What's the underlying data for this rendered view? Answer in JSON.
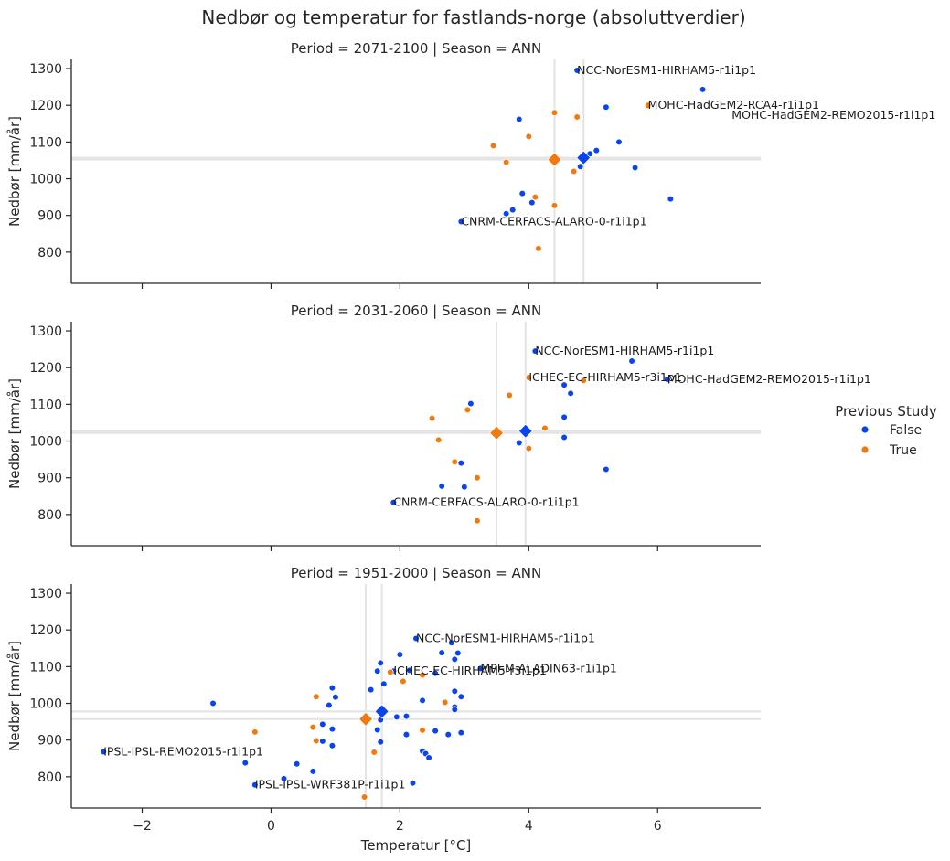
{
  "title": "Nedbør og temperatur for fastlands-norge (absoluttverdier)",
  "legend": {
    "title": "Previous Study",
    "placement": "right",
    "entries": [
      {
        "label": "False",
        "color": "#0a44ee"
      },
      {
        "label": "True",
        "color": "#f07a0d"
      }
    ]
  },
  "chart_data": [
    {
      "type": "scatter",
      "title": "Period = 2071-2100 | Season = ANN",
      "xlabel": "",
      "ylabel": "Nedbør [mm/år]",
      "xlim": [
        -3.1,
        7.6
      ],
      "ylim": [
        715,
        1325
      ],
      "xticks": [
        -2,
        0,
        2,
        4,
        6
      ],
      "yticks": [
        800,
        900,
        1000,
        1100,
        1200,
        1300
      ],
      "show_xticklabels": false,
      "grid": false,
      "series": [
        {
          "name": "False",
          "color": "#0a44ee",
          "points": [
            [
              4.75,
              1295
            ],
            [
              6.7,
              1243
            ],
            [
              5.2,
              1195
            ],
            [
              3.85,
              1162
            ],
            [
              5.4,
              1100
            ],
            [
              5.05,
              1077
            ],
            [
              4.95,
              1068
            ],
            [
              4.8,
              1033
            ],
            [
              5.65,
              1030
            ],
            [
              3.9,
              960
            ],
            [
              4.05,
              935
            ],
            [
              6.2,
              945
            ],
            [
              3.75,
              915
            ],
            [
              3.65,
              905
            ],
            [
              2.95,
              883
            ]
          ]
        },
        {
          "name": "True",
          "color": "#f07a0d",
          "points": [
            [
              5.85,
              1200
            ],
            [
              4.4,
              1180
            ],
            [
              4.75,
              1168
            ],
            [
              4.0,
              1115
            ],
            [
              3.45,
              1090
            ],
            [
              3.65,
              1045
            ],
            [
              4.7,
              1020
            ],
            [
              4.1,
              950
            ],
            [
              4.4,
              927
            ],
            [
              4.15,
              810
            ]
          ]
        }
      ],
      "means": [
        {
          "name": "False",
          "x": 4.85,
          "y": 1057
        },
        {
          "name": "True",
          "x": 4.4,
          "y": 1052
        }
      ],
      "annotations": [
        {
          "text": "NCC-NorESM1-HIRHAM5-r1i1p1",
          "x": 4.75,
          "y": 1295
        },
        {
          "text": "MOHC-HadGEM2-RCA4-r1i1p1",
          "x": 5.85,
          "y": 1200
        },
        {
          "text": "MOHC-HadGEM2-REMO2015-r1i1p1",
          "x": 7.15,
          "y": 1173
        },
        {
          "text": "CNRM-CERFACS-ALARO-0-r1i1p1",
          "x": 2.95,
          "y": 883
        }
      ]
    },
    {
      "type": "scatter",
      "title": "Period = 2031-2060 | Season = ANN",
      "xlabel": "",
      "ylabel": "Nedbør [mm/år]",
      "xlim": [
        -3.1,
        7.6
      ],
      "ylim": [
        715,
        1325
      ],
      "xticks": [
        -2,
        0,
        2,
        4,
        6
      ],
      "yticks": [
        800,
        900,
        1000,
        1100,
        1200,
        1300
      ],
      "show_xticklabels": false,
      "grid": false,
      "series": [
        {
          "name": "False",
          "color": "#0a44ee",
          "points": [
            [
              4.1,
              1245
            ],
            [
              5.6,
              1218
            ],
            [
              6.15,
              1168
            ],
            [
              4.55,
              1153
            ],
            [
              4.65,
              1130
            ],
            [
              3.1,
              1102
            ],
            [
              4.55,
              1065
            ],
            [
              4.55,
              1010
            ],
            [
              3.85,
              995
            ],
            [
              5.2,
              923
            ],
            [
              2.95,
              940
            ],
            [
              2.65,
              877
            ],
            [
              3.0,
              875
            ],
            [
              1.9,
              833
            ]
          ]
        },
        {
          "name": "True",
          "color": "#f07a0d",
          "points": [
            [
              4.0,
              1173
            ],
            [
              4.85,
              1165
            ],
            [
              3.7,
              1125
            ],
            [
              3.05,
              1085
            ],
            [
              2.5,
              1062
            ],
            [
              4.25,
              1035
            ],
            [
              2.6,
              1003
            ],
            [
              2.85,
              943
            ],
            [
              4.0,
              980
            ],
            [
              3.2,
              900
            ],
            [
              3.2,
              783
            ]
          ]
        }
      ],
      "means": [
        {
          "name": "False",
          "x": 3.95,
          "y": 1027
        },
        {
          "name": "True",
          "x": 3.5,
          "y": 1022
        }
      ],
      "annotations": [
        {
          "text": "NCC-NorESM1-HIRHAM5-r1i1p1",
          "x": 4.1,
          "y": 1245
        },
        {
          "text": "ICHEC-EC-HIRHAM5-r3i1p1",
          "x": 4.0,
          "y": 1173
        },
        {
          "text": "MOHC-HadGEM2-REMO2015-r1i1p1",
          "x": 6.15,
          "y": 1168
        },
        {
          "text": "CNRM-CERFACS-ALARO-0-r1i1p1",
          "x": 1.9,
          "y": 833
        }
      ]
    },
    {
      "type": "scatter",
      "title": "Period = 1951-2000 | Season = ANN",
      "xlabel": "Temperatur [°C]",
      "ylabel": "Nedbør [mm/år]",
      "xlim": [
        -3.1,
        7.6
      ],
      "ylim": [
        715,
        1325
      ],
      "xticks": [
        -2,
        0,
        2,
        4,
        6
      ],
      "yticks": [
        800,
        900,
        1000,
        1100,
        1200,
        1300
      ],
      "show_xticklabels": true,
      "grid": false,
      "series": [
        {
          "name": "False",
          "color": "#0a44ee",
          "points": [
            [
              2.25,
              1177
            ],
            [
              2.8,
              1165
            ],
            [
              2.65,
              1138
            ],
            [
              2.9,
              1137
            ],
            [
              2.0,
              1133
            ],
            [
              1.7,
              1110
            ],
            [
              2.85,
              1120
            ],
            [
              1.65,
              1088
            ],
            [
              1.9,
              1088
            ],
            [
              2.15,
              1090
            ],
            [
              3.25,
              1095
            ],
            [
              2.55,
              1082
            ],
            [
              1.75,
              1053
            ],
            [
              1.55,
              1037
            ],
            [
              0.95,
              1042
            ],
            [
              2.85,
              1033
            ],
            [
              1.0,
              1017
            ],
            [
              2.95,
              1018
            ],
            [
              -0.9,
              1000
            ],
            [
              0.9,
              995
            ],
            [
              2.35,
              1008
            ],
            [
              2.85,
              990
            ],
            [
              2.85,
              983
            ],
            [
              0.8,
              943
            ],
            [
              0.95,
              930
            ],
            [
              1.65,
              928
            ],
            [
              2.55,
              925
            ],
            [
              2.95,
              920
            ],
            [
              2.75,
              915
            ],
            [
              2.1,
              915
            ],
            [
              1.95,
              963
            ],
            [
              2.1,
              965
            ],
            [
              1.7,
              955
            ],
            [
              0.8,
              897
            ],
            [
              0.95,
              885
            ],
            [
              1.7,
              895
            ],
            [
              2.35,
              870
            ],
            [
              2.4,
              863
            ],
            [
              2.45,
              852
            ],
            [
              -2.6,
              868
            ],
            [
              -0.4,
              838
            ],
            [
              0.4,
              835
            ],
            [
              0.65,
              815
            ],
            [
              0.2,
              795
            ],
            [
              -0.25,
              778
            ],
            [
              2.2,
              783
            ]
          ]
        },
        {
          "name": "True",
          "color": "#f07a0d",
          "points": [
            [
              1.85,
              1085
            ],
            [
              2.35,
              1077
            ],
            [
              0.7,
              1018
            ],
            [
              2.05,
              1060
            ],
            [
              2.7,
              1003
            ],
            [
              -0.25,
              922
            ],
            [
              0.65,
              935
            ],
            [
              0.7,
              898
            ],
            [
              2.35,
              927
            ],
            [
              1.6,
              867
            ],
            [
              1.45,
              745
            ]
          ]
        }
      ],
      "means": [
        {
          "name": "False",
          "x": 1.72,
          "y": 978
        },
        {
          "name": "True",
          "x": 1.47,
          "y": 957
        }
      ],
      "annotations": [
        {
          "text": "NCC-NorESM1-HIRHAM5-r1i1p1",
          "x": 2.25,
          "y": 1177
        },
        {
          "text": "MPI-M-ALADIN63-r1i1p1",
          "x": 3.25,
          "y": 1095
        },
        {
          "text": "ICHEC-EC-HIRHAM5-r3i1p1",
          "x": 1.9,
          "y": 1088
        },
        {
          "text": "IPSL-IPSL-REMO2015-r1i1p1",
          "x": -2.6,
          "y": 868
        },
        {
          "text": "IPSL-IPSL-WRF381P-r1i1p1",
          "x": -0.25,
          "y": 778
        }
      ]
    }
  ]
}
